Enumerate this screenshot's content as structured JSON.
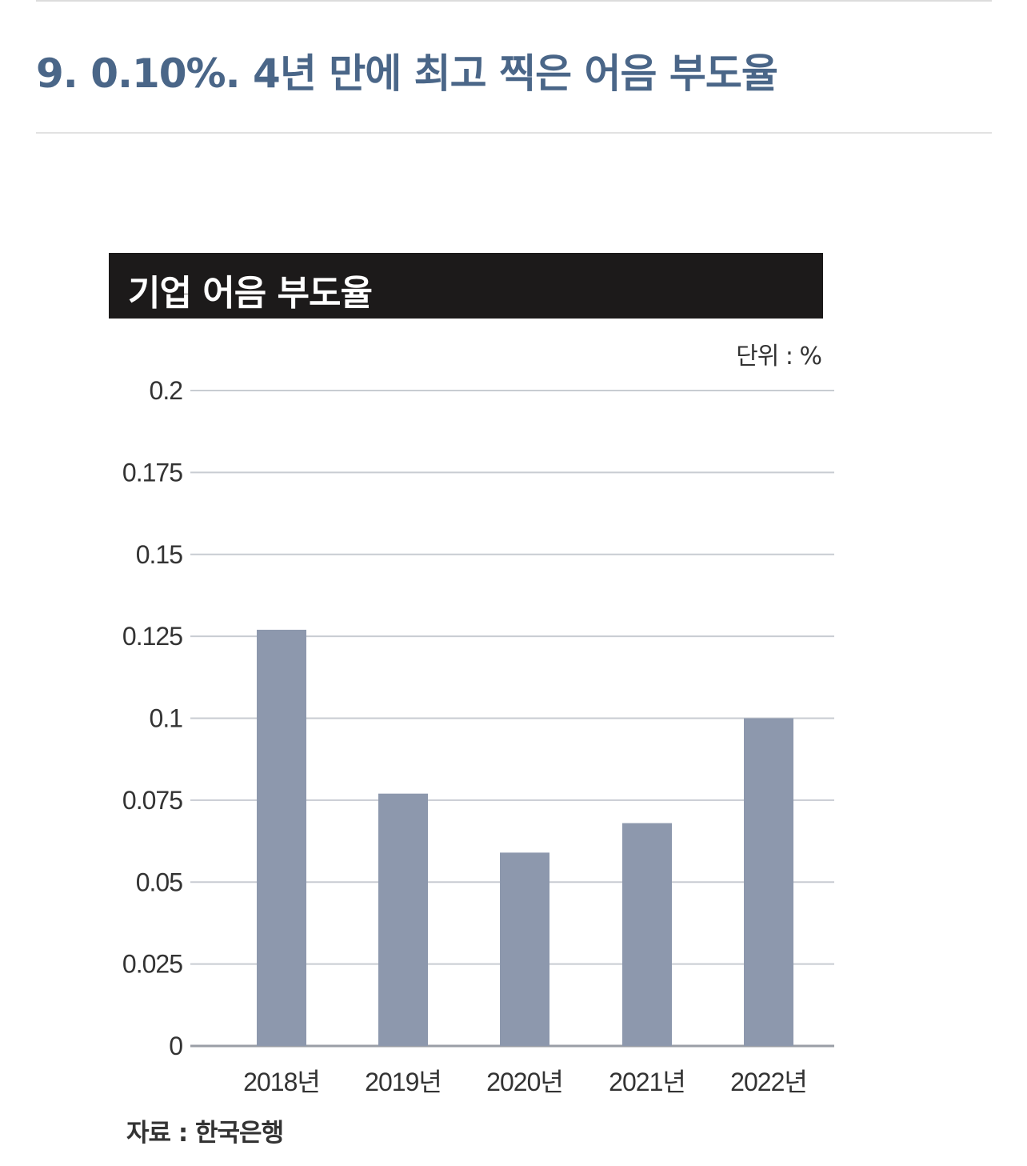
{
  "page": {
    "heading": "9. 0.10%. 4년 만에 최고 찍은 어음 부도율"
  },
  "chart_data": {
    "type": "bar",
    "title": "기업 어음 부도율",
    "unit_label": "단위 : %",
    "source": "자료 : 한국은행",
    "categories": [
      "2018년",
      "2019년",
      "2020년",
      "2021년",
      "2022년"
    ],
    "values": [
      0.127,
      0.077,
      0.059,
      0.068,
      0.1
    ],
    "y_ticks": [
      0,
      0.025,
      0.05,
      0.075,
      0.1,
      0.125,
      0.15,
      0.175,
      0.2
    ],
    "y_tick_labels": [
      "0",
      "0.025",
      "0.05",
      "0.075",
      "0.1",
      "0.125",
      "0.15",
      "0.175",
      "0.2"
    ],
    "ylim": [
      0,
      0.2
    ],
    "xlabel": "",
    "ylabel": "",
    "grid": true,
    "bar_color": "#8d98ad",
    "grid_color": "#c8ccd2",
    "legend": "none"
  }
}
